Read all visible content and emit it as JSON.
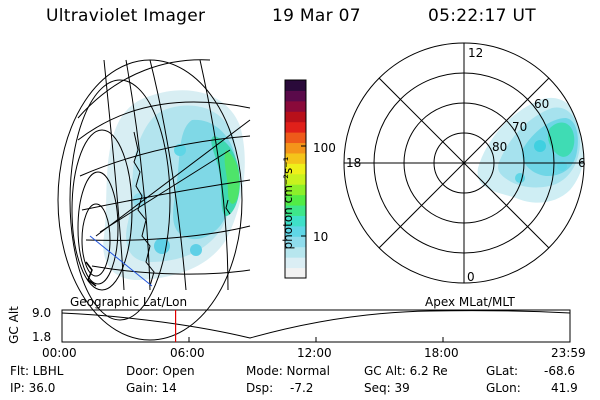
{
  "header": {
    "instrument": "Ultraviolet Imager",
    "date": "19 Mar 07",
    "time": "05:22:17 UT"
  },
  "colorbar": {
    "label": "photon cm⁻²s⁻¹",
    "ticks": [
      "100",
      "10"
    ],
    "colors": [
      "#f2f2f2",
      "#dbeef4",
      "#b7e6ee",
      "#8fdcec",
      "#5fd6e6",
      "#3fe0c8",
      "#3ee68a",
      "#52ec46",
      "#8cf02a",
      "#c8f21e",
      "#eef01a",
      "#f4c41a",
      "#f4941a",
      "#ee5a1a",
      "#e0201a",
      "#b8101a",
      "#8a0a3a",
      "#5a0a4a",
      "#2a0a3a"
    ]
  },
  "left_map": {
    "label": "Geographic Lat/Lon"
  },
  "right_polar": {
    "label": "Apex MLat/MLT",
    "mlt_labels": {
      "top": "12",
      "left": "18",
      "right": "6",
      "bottom": "0"
    },
    "lat_labels": [
      "80",
      "70",
      "60"
    ]
  },
  "altitude_plot": {
    "ylabel": "GC Alt",
    "yticks": [
      "9.0",
      "1.8"
    ],
    "xticks": [
      "00:00",
      "06:00",
      "12:00",
      "18:00",
      "23:59"
    ],
    "marker_time": "05:22",
    "marker_color": "#e00000"
  },
  "info": {
    "flt": "Flt: LBHL",
    "ip": "IP: 36.0",
    "door": "Door: Open",
    "gain": "Gain: 14",
    "mode": "Mode: Normal",
    "dsp": "Dsp:",
    "dsp_val": "-7.2",
    "gcalt": "GC Alt: 6.2 Re",
    "seq": "Seq: 39",
    "glat": "GLat:",
    "glat_val": "-68.6",
    "glon": "GLon:",
    "glon_val": "41.9"
  }
}
